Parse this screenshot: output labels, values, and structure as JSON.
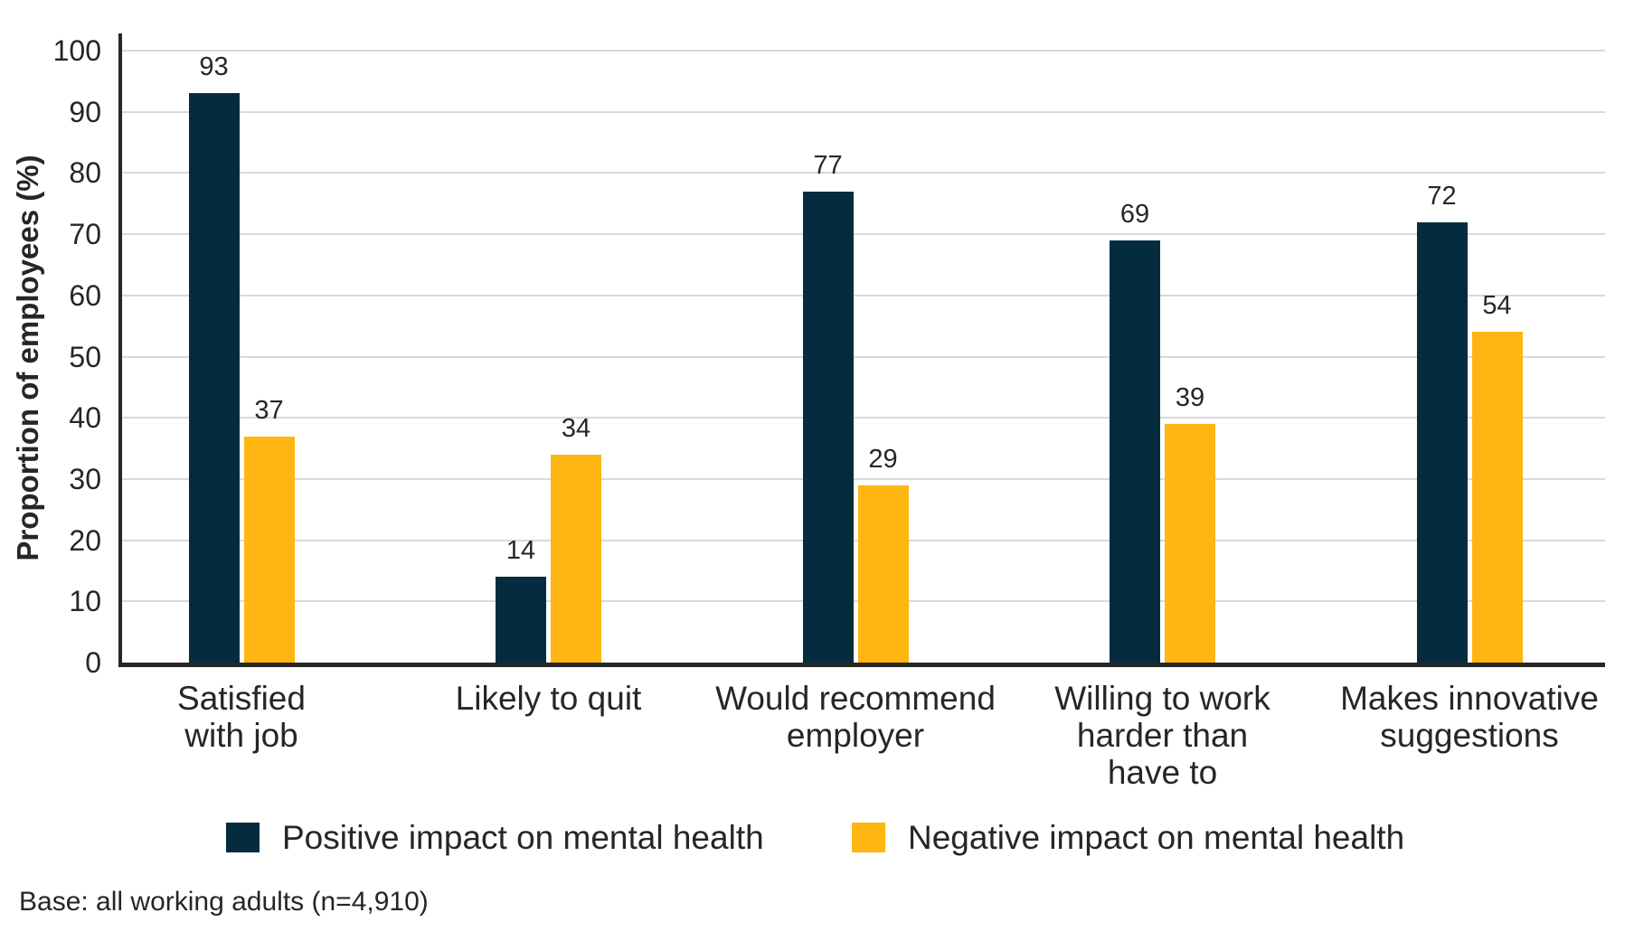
{
  "chart_data": {
    "type": "bar",
    "categories": [
      "Satisfied\nwith job",
      "Likely to quit",
      "Would recommend\nemployer",
      "Willing to work\nharder than\nhave to",
      "Makes innovative\nsuggestions"
    ],
    "series": [
      {
        "name": "Positive impact on mental health",
        "color": "#052c3e",
        "values": [
          93,
          14,
          77,
          69,
          72
        ]
      },
      {
        "name": "Negative impact on mental health",
        "color": "#ffb612",
        "values": [
          37,
          34,
          29,
          39,
          54
        ]
      }
    ],
    "title": "",
    "xlabel": "",
    "ylabel": "Proportion of employees (%)",
    "ylim": [
      0,
      100
    ],
    "yticks": [
      0,
      10,
      20,
      30,
      40,
      50,
      60,
      70,
      80,
      90,
      100
    ],
    "grid": "horizontal",
    "value_labels": true,
    "legend_position": "bottom",
    "base_note": "Base: all working adults (n=4,910)"
  },
  "colors": {
    "positive": "#052c3e",
    "negative": "#ffb612",
    "gridline": "#d9d9d9",
    "axis": "#262626",
    "text": "#262626",
    "background": "#ffffff"
  }
}
